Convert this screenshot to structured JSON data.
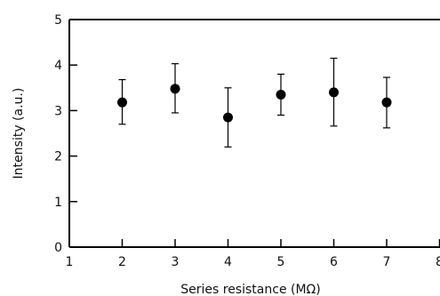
{
  "chart_data": {
    "type": "scatter",
    "title": "",
    "xlabel": "Series resistance (MΩ)",
    "ylabel": "Intensity (a.u.)",
    "xlim": [
      1,
      8
    ],
    "ylim": [
      0,
      5
    ],
    "xticks": [
      1,
      2,
      3,
      4,
      5,
      6,
      7,
      8
    ],
    "yticks": [
      0,
      1,
      2,
      3,
      4,
      5
    ],
    "grid": false,
    "error_bars": true,
    "series": [
      {
        "marker": "filled-circle",
        "color": "#000000",
        "x": [
          2,
          3,
          4,
          5,
          6,
          7
        ],
        "y": [
          3.18,
          3.48,
          2.85,
          3.35,
          3.4,
          3.18
        ],
        "y_low": [
          2.7,
          2.95,
          2.2,
          2.9,
          2.66,
          2.62
        ],
        "y_high": [
          3.68,
          4.03,
          3.5,
          3.8,
          4.15,
          3.73
        ]
      }
    ]
  }
}
